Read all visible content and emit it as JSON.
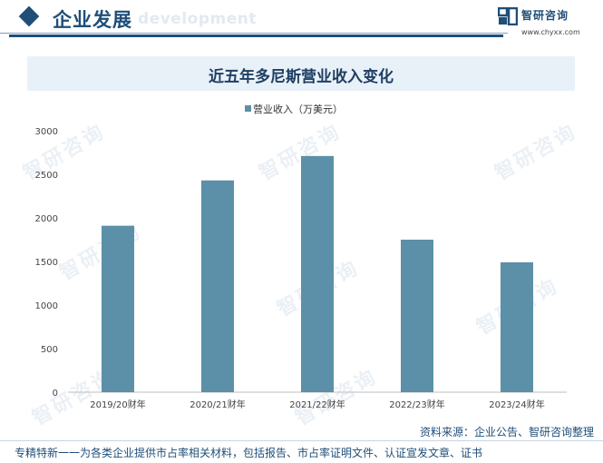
{
  "header": {
    "title": "企业发展",
    "watermark": "development"
  },
  "brand": {
    "name": "智研咨询",
    "url": "www.chyxx.com",
    "logo_icon": "zhiyan-logo-icon"
  },
  "watermark_text": "智研咨询",
  "colors": {
    "primary": "#1f4e79",
    "bar": "#5b90a8",
    "title_band": "#e9f1f8"
  },
  "chart_data": {
    "type": "bar",
    "title": "近五年多尼斯营业收入变化",
    "categories": [
      "2019/20财年",
      "2020/21财年",
      "2021/22财年",
      "2022/23财年",
      "2023/24财年"
    ],
    "series": [
      {
        "name": "营业收入（万美元）",
        "values": [
          1910,
          2430,
          2710,
          1750,
          1490
        ]
      }
    ],
    "ylim": [
      0,
      3000
    ],
    "yticks": [
      0,
      500,
      1000,
      1500,
      2000,
      2500,
      3000
    ],
    "grid": false,
    "legend": "top-center"
  },
  "source": "资料来源：企业公告、智研咨询整理",
  "footer": "专精特新一一为各类企业提供市占率相关材料，包括报告、市占率证明文件、认证宣发文章、证书"
}
